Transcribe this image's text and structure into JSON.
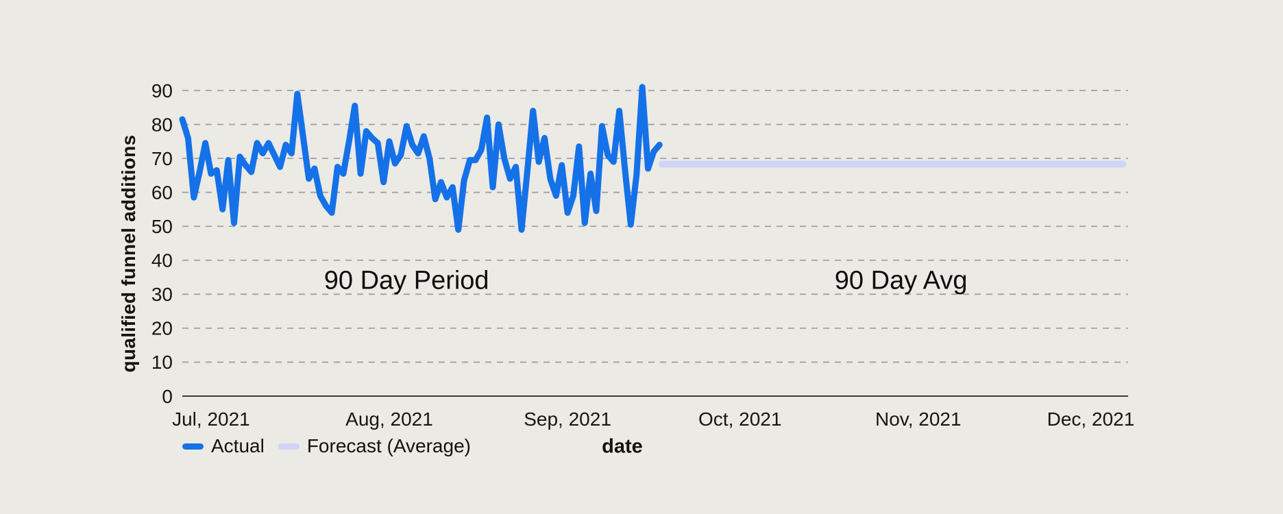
{
  "chart_data": {
    "type": "line",
    "title": "",
    "xlabel": "date",
    "ylabel": "qualified funnel additions",
    "ylim": [
      0,
      90
    ],
    "yticks": [
      0,
      10,
      20,
      30,
      40,
      50,
      60,
      70,
      80,
      90
    ],
    "x_domain_days": [
      0,
      164.5
    ],
    "xticks": [
      {
        "label": "Jul, 2021",
        "day": 5
      },
      {
        "label": "Aug, 2021",
        "day": 36
      },
      {
        "label": "Sep, 2021",
        "day": 67
      },
      {
        "label": "Oct, 2021",
        "day": 97
      },
      {
        "label": "Nov, 2021",
        "day": 128
      },
      {
        "label": "Dec, 2021",
        "day": 158
      }
    ],
    "grid": "horizontal-dashed",
    "legend_position": "bottom-left",
    "series": [
      {
        "name": "Actual",
        "color": "#1571E8",
        "start_day": 0,
        "step_days": 1,
        "values": [
          81.5,
          76,
          58.5,
          66,
          74.5,
          65.5,
          66.5,
          55,
          69.5,
          51,
          70.5,
          68,
          66,
          74.5,
          71.5,
          74.5,
          71,
          67.5,
          74,
          71.5,
          89,
          76.5,
          64,
          67,
          59,
          56,
          54,
          67.5,
          65.5,
          75,
          85.5,
          65.5,
          78,
          76,
          74.5,
          63,
          75,
          68.5,
          71,
          79.5,
          74,
          71.5,
          76.5,
          70,
          58,
          63,
          58.5,
          61.5,
          49,
          63.5,
          69.5,
          69.5,
          72.5,
          82,
          61.5,
          80,
          70,
          64,
          67.5,
          49,
          66,
          84,
          69,
          76,
          64,
          59,
          68,
          54,
          59,
          73.5,
          51,
          65.5,
          54.5,
          79.5,
          71,
          69,
          84,
          66.5,
          50.5,
          65,
          91,
          67,
          72,
          74
        ]
      },
      {
        "name": "Forecast (Average)",
        "color": "#CED5F6",
        "start_day": 83.4,
        "end_day": 163.6,
        "value": 68.3
      }
    ],
    "annotations": [
      {
        "text": "90 Day Period",
        "day": 39,
        "value": 34
      },
      {
        "text": "90 Day Avg",
        "day": 125,
        "value": 34
      }
    ],
    "colors": {
      "background": "#ECEAE4",
      "grid": "#9AA1AD",
      "axis_line": "#3A3A3A",
      "text": "#161616"
    }
  }
}
